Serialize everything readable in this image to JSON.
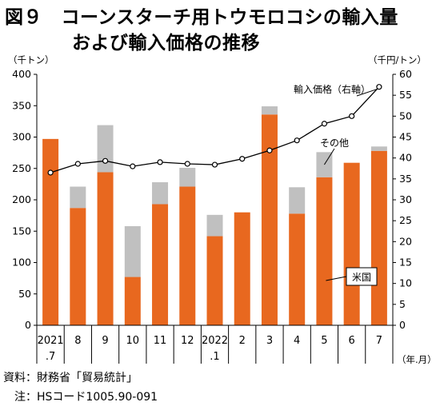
{
  "figure": {
    "title_line1": "図９　コーンスターチ用トウモロコシの輸入量",
    "title_line2": "および輸入価格の推移",
    "source_note": "資料：財務省「貿易統計」",
    "hs_note": "　注：HSコード1005.90-091"
  },
  "chart_data": {
    "type": "bar",
    "categories": [
      "2021\n.7",
      "8",
      "9",
      "10",
      "11",
      "12",
      "2022\n.1",
      "2",
      "3",
      "4",
      "5",
      "6",
      "7"
    ],
    "series": [
      {
        "name": "米国",
        "type": "bar",
        "stack": "volume",
        "axis": "left",
        "values": [
          297,
          187,
          244,
          77,
          193,
          221,
          142,
          180,
          336,
          178,
          236,
          259,
          278
        ]
      },
      {
        "name": "その他",
        "type": "bar",
        "stack": "volume",
        "axis": "left",
        "values": [
          0,
          34,
          75,
          81,
          35,
          30,
          34,
          0,
          13,
          42,
          40,
          0,
          7
        ]
      },
      {
        "name": "輸入価格（右軸）",
        "type": "line",
        "axis": "right",
        "values": [
          36.5,
          38.6,
          39.3,
          38.0,
          39.0,
          38.6,
          38.4,
          39.8,
          41.8,
          44.2,
          48.2,
          50.0,
          57.0
        ]
      }
    ],
    "ylabel_left": "（千トン）",
    "ylabel_right": "（千円/トン）",
    "xlabel": "（年.月）",
    "ylim_left": [
      0,
      400
    ],
    "ylim_right": [
      0,
      60
    ],
    "yticks_left": [
      "0",
      "50",
      "100",
      "150",
      "200",
      "250",
      "300",
      "350",
      "400"
    ],
    "yticks_right": [
      "0",
      "5",
      "10",
      "15",
      "20",
      "25",
      "30",
      "35",
      "40",
      "45",
      "50",
      "55",
      "60"
    ],
    "grid": false,
    "colors": {
      "us": "#e8681f",
      "other": "#c0c0c0",
      "line": "#000000",
      "axis": "#000000"
    }
  }
}
